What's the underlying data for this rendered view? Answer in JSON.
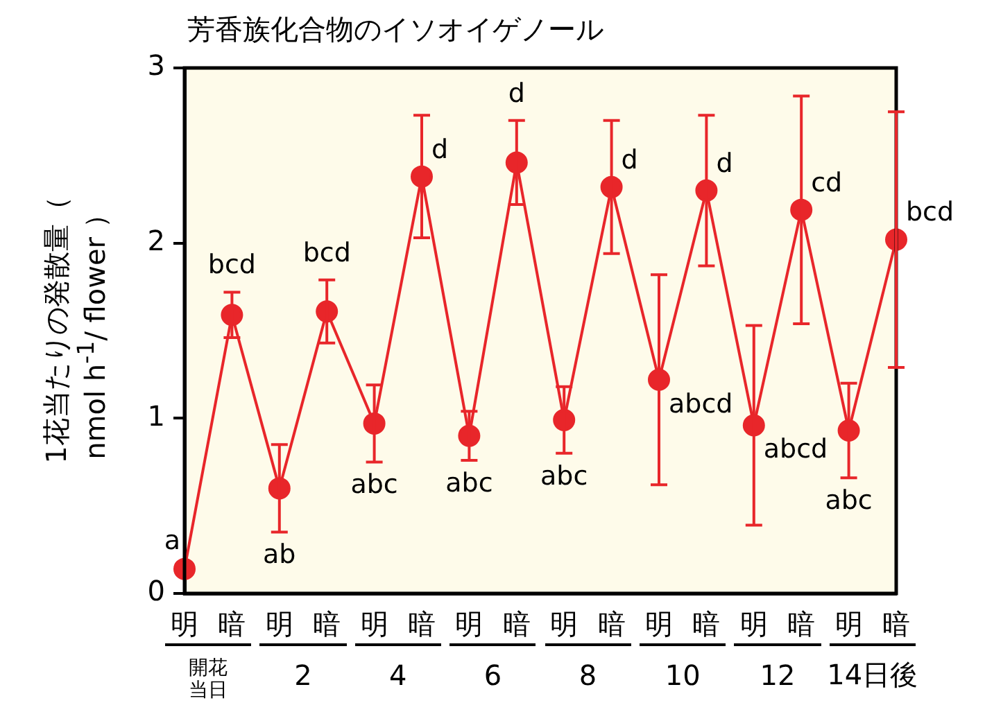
{
  "chart_data": {
    "type": "line",
    "title": "芳香族化合物のイソオイゲノール",
    "ylabel": "1花当たりの発散量（nmol h$^{-1}$/ flower ）",
    "categories": [
      "明",
      "暗",
      "明",
      "暗",
      "明",
      "暗",
      "明",
      "暗",
      "明",
      "暗",
      "明",
      "暗",
      "明",
      "暗",
      "明",
      "暗"
    ],
    "values": [
      0.14,
      1.59,
      0.6,
      1.61,
      0.97,
      2.38,
      0.9,
      2.46,
      0.99,
      2.32,
      1.22,
      2.3,
      0.96,
      2.19,
      0.93,
      2.02
    ],
    "errors": [
      null,
      0.13,
      0.25,
      0.18,
      0.22,
      0.35,
      0.14,
      0.24,
      0.19,
      0.38,
      0.6,
      0.43,
      0.57,
      0.65,
      0.27,
      0.73
    ],
    "value_labels": [
      "a",
      "bcd",
      "ab",
      "bcd",
      "abc",
      "d",
      "abc",
      "d",
      "abc",
      "d",
      "abcd",
      "d",
      "abcd",
      "cd",
      "abc",
      "bcd"
    ],
    "color": "#e8262a",
    "marker": "circle",
    "line_style": "solid",
    "ylim": [
      0,
      3
    ],
    "yticks": [
      0,
      1,
      2,
      3
    ],
    "grid": false,
    "legend": false,
    "annotations": [
      "開花当日",
      "2",
      "4",
      "6",
      "8",
      "10",
      "12",
      "14日後"
    ]
  }
}
